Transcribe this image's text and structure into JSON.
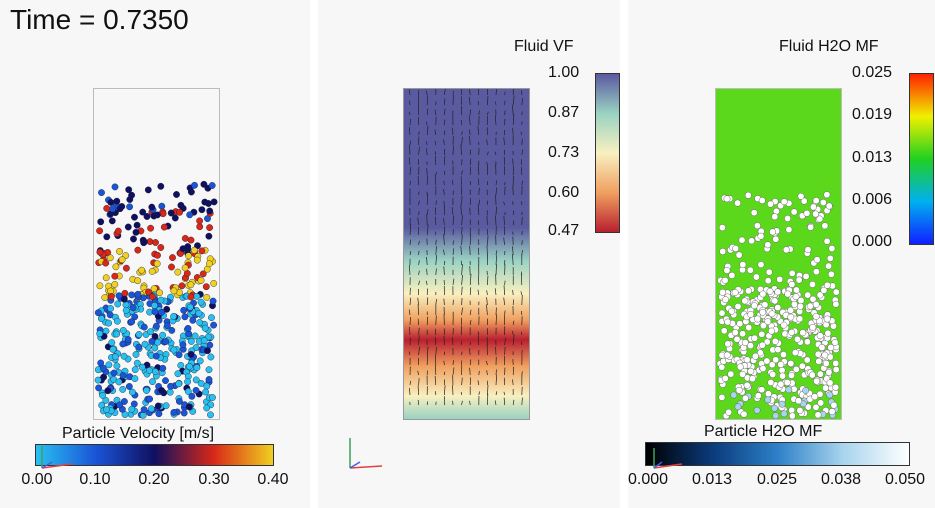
{
  "time_label": "Time = 0.7350",
  "panels": {
    "particle_velocity": {
      "legend_title": "Particle Velocity [m/s]",
      "ticks": [
        "0.00",
        "0.10",
        "0.20",
        "0.30",
        "0.40"
      ],
      "colors": [
        "#29c0f0",
        "#1a55d8",
        "#101060",
        "#d82818",
        "#f0d020"
      ]
    },
    "fluid_vf": {
      "legend_title": "Fluid VF",
      "ticks": [
        "1.00",
        "0.87",
        "0.73",
        "0.60",
        "0.47"
      ],
      "colors": [
        "#5a5aa0",
        "#9ad2c2",
        "#f8f0c0",
        "#f0a060",
        "#b82030"
      ]
    },
    "fluid_h2o_mf": {
      "legend_title": "Fluid H2O MF",
      "ticks": [
        "0.025",
        "0.019",
        "0.013",
        "0.006",
        "0.000"
      ],
      "colors": [
        "#ff2000",
        "#f0f000",
        "#20d020",
        "#00b0f0",
        "#1020ff"
      ],
      "field_color": "#5cd81c"
    },
    "particle_h2o_mf": {
      "legend_title": "Particle H2O MF",
      "ticks": [
        "0.000",
        "0.013",
        "0.025",
        "0.038",
        "0.050"
      ],
      "colors": [
        "#000000",
        "#0a3a7a",
        "#2d80c8",
        "#a8d4ee",
        "#ffffff"
      ]
    }
  }
}
